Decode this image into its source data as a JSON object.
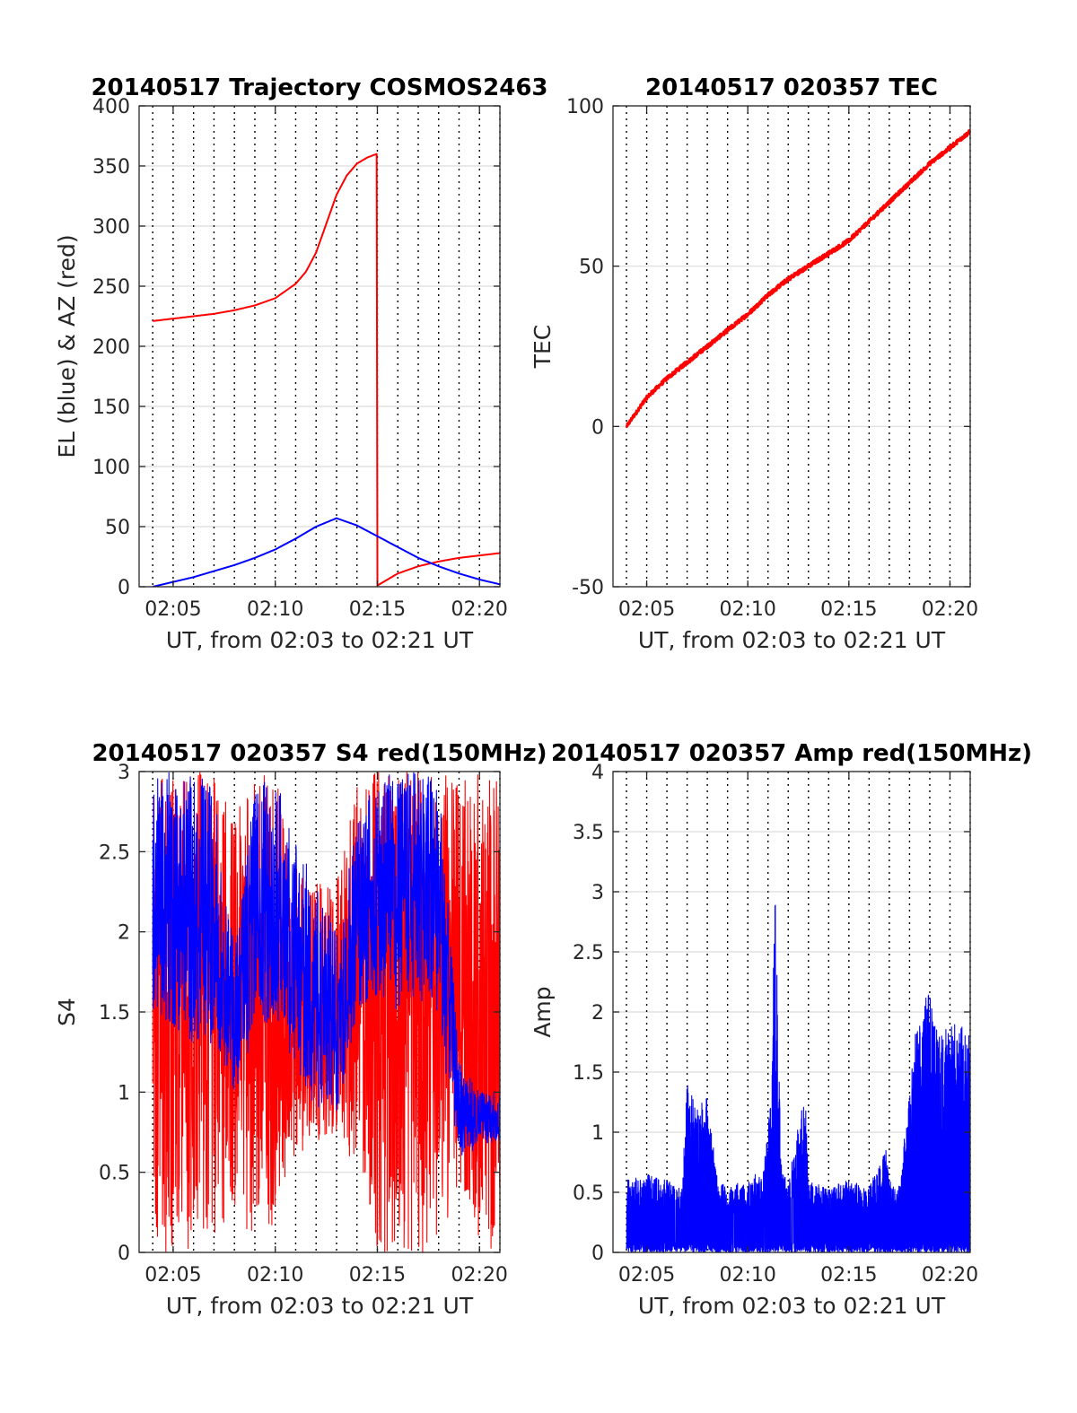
{
  "chart_data": [
    {
      "type": "line",
      "title": "20140517 Trajectory COSMOS2463",
      "xlabel": "UT, from 02:03 to 02:21 UT",
      "ylabel": "EL (blue) & AZ (red)",
      "xlim": [
        "02:03:20",
        "02:21:00"
      ],
      "xticks": [
        "02:05",
        "02:10",
        "02:15",
        "02:20"
      ],
      "ylim": [
        0,
        400
      ],
      "yticks": [
        0,
        50,
        100,
        150,
        200,
        250,
        300,
        350,
        400
      ],
      "grid": "horizontal solid, vertical dotted each minute",
      "series": [
        {
          "name": "AZ",
          "color": "#ff0000",
          "x": [
            "02:04:00",
            "02:05:00",
            "02:06:00",
            "02:07:00",
            "02:08:00",
            "02:09:00",
            "02:10:00",
            "02:11:00",
            "02:11:30",
            "02:12:00",
            "02:12:30",
            "02:13:00",
            "02:13:30",
            "02:14:00",
            "02:14:30",
            "02:14:58",
            "02:15:00",
            "02:16:00",
            "02:17:00",
            "02:18:00",
            "02:19:00",
            "02:20:00",
            "02:21:00"
          ],
          "values": [
            221,
            223,
            225,
            227,
            230,
            234,
            240,
            252,
            262,
            278,
            302,
            326,
            342,
            352,
            357,
            360,
            1,
            11,
            17,
            21,
            24,
            26,
            28
          ]
        },
        {
          "name": "EL",
          "color": "#0000ff",
          "x": [
            "02:04:00",
            "02:05:00",
            "02:06:00",
            "02:07:00",
            "02:08:00",
            "02:09:00",
            "02:10:00",
            "02:11:00",
            "02:12:00",
            "02:13:00",
            "02:14:00",
            "02:15:00",
            "02:16:00",
            "02:17:00",
            "02:18:00",
            "02:19:00",
            "02:20:00",
            "02:21:00"
          ],
          "values": [
            0,
            4,
            8,
            13,
            18,
            24,
            31,
            40,
            50,
            57,
            51,
            42,
            33,
            24,
            17,
            11,
            6,
            2
          ]
        }
      ]
    },
    {
      "type": "line",
      "title": "20140517 020357 TEC",
      "xlabel": "UT, from 02:03 to 02:21 UT",
      "ylabel": "TEC",
      "xlim": [
        "02:03:20",
        "02:21:00"
      ],
      "xticks": [
        "02:05",
        "02:10",
        "02:15",
        "02:20"
      ],
      "ylim": [
        -50,
        100
      ],
      "yticks": [
        -50,
        0,
        50,
        100
      ],
      "grid": "horizontal solid, vertical dotted each minute",
      "series": [
        {
          "name": "TEC",
          "color": "#ff0000",
          "x": [
            "02:04:00",
            "02:05:00",
            "02:06:00",
            "02:07:00",
            "02:08:00",
            "02:09:00",
            "02:10:00",
            "02:11:00",
            "02:12:00",
            "02:13:00",
            "02:14:00",
            "02:15:00",
            "02:16:00",
            "02:17:00",
            "02:18:00",
            "02:19:00",
            "02:20:00",
            "02:21:00"
          ],
          "values": [
            0,
            9,
            15,
            20,
            25,
            30,
            35,
            41,
            46,
            50,
            54,
            58,
            64,
            70,
            76,
            82,
            87,
            92
          ]
        }
      ]
    },
    {
      "type": "line",
      "title": "20140517 020357 S4 red(150MHz)",
      "xlabel": "UT, from 02:03 to 02:21 UT",
      "ylabel": "S4",
      "xlim": [
        "02:03:20",
        "02:21:00"
      ],
      "xticks": [
        "02:05",
        "02:10",
        "02:15",
        "02:20"
      ],
      "ylim": [
        0,
        3
      ],
      "yticks": [
        0,
        0.5,
        1,
        1.5,
        2,
        2.5,
        3
      ],
      "grid": "horizontal solid, vertical dotted each minute",
      "series": [
        {
          "name": "S4 red",
          "color": "#ff0000",
          "x": [
            "02:04:00",
            "02:05:00",
            "02:06:00",
            "02:07:00",
            "02:08:00",
            "02:09:00",
            "02:10:00",
            "02:11:00",
            "02:12:00",
            "02:13:00",
            "02:14:00",
            "02:15:00",
            "02:16:00",
            "02:17:00",
            "02:18:00",
            "02:19:00",
            "02:20:00",
            "02:21:00"
          ],
          "values": [
            2.2,
            1.8,
            1.6,
            1.7,
            1.4,
            1.7,
            1.8,
            1.6,
            1.3,
            1.5,
            1.7,
            2.2,
            1.6,
            2.0,
            1.8,
            1.5,
            1.3,
            1.5
          ],
          "range_low": [
            0,
            0,
            0,
            0,
            0.3,
            0,
            0.2,
            0.6,
            0.7,
            0.7,
            0.5,
            0,
            0,
            0,
            0,
            0.4,
            0,
            0
          ],
          "range_high": [
            3,
            3,
            3,
            3,
            2.7,
            3,
            3,
            2.4,
            2.3,
            2.3,
            3,
            3,
            3,
            3,
            3,
            3,
            3,
            3
          ]
        },
        {
          "name": "S4 blue",
          "color": "#0000ff",
          "x": [
            "02:04:00",
            "02:05:00",
            "02:06:00",
            "02:07:00",
            "02:08:00",
            "02:09:00",
            "02:10:00",
            "02:11:00",
            "02:12:00",
            "02:13:00",
            "02:14:00",
            "02:15:00",
            "02:16:00",
            "02:17:00",
            "02:18:00",
            "02:19:00",
            "02:20:00",
            "02:21:00"
          ],
          "values": [
            2.2,
            2.3,
            2.2,
            2.0,
            1.4,
            2.0,
            2.2,
            1.8,
            1.6,
            1.4,
            2.0,
            2.3,
            2.2,
            2.4,
            2.1,
            0.8,
            0.85,
            0.8
          ],
          "range_low": [
            1.5,
            1.4,
            1.3,
            1.3,
            1.0,
            1.3,
            1.5,
            1.1,
            0.9,
            0.8,
            1.5,
            1.6,
            1.5,
            1.6,
            1.4,
            0.6,
            0.65,
            0.7
          ],
          "range_high": [
            3,
            3,
            3,
            2.9,
            1.9,
            2.9,
            3,
            2.6,
            2.3,
            2.0,
            2.7,
            3,
            3,
            3,
            3,
            1.2,
            1.0,
            1.0
          ]
        }
      ]
    },
    {
      "type": "line",
      "title": "20140517 020357 Amp red(150MHz)",
      "xlabel": "UT, from 02:03 to 02:21 UT",
      "ylabel": "Amp",
      "xlim": [
        "02:03:20",
        "02:21:00"
      ],
      "xticks": [
        "02:05",
        "02:10",
        "02:15",
        "02:20"
      ],
      "ylim": [
        0,
        4
      ],
      "yticks": [
        0,
        0.5,
        1,
        1.5,
        2,
        2.5,
        3,
        3.5,
        4
      ],
      "grid": "horizontal solid, vertical dotted each minute",
      "series": [
        {
          "name": "Amp",
          "color": "#0000ff",
          "x": [
            "02:04:00",
            "02:05:00",
            "02:06:00",
            "02:06:45",
            "02:07:00",
            "02:07:30",
            "02:08:00",
            "02:08:30",
            "02:09:00",
            "02:10:00",
            "02:10:45",
            "02:11:10",
            "02:11:20",
            "02:11:40",
            "02:12:00",
            "02:12:50",
            "02:13:00",
            "02:14:00",
            "02:15:00",
            "02:16:00",
            "02:16:50",
            "02:17:00",
            "02:17:30",
            "02:18:20",
            "02:18:30",
            "02:19:00",
            "02:19:30",
            "02:20:00",
            "02:21:00"
          ],
          "values": [
            0.6,
            0.65,
            0.6,
            0.55,
            1.4,
            1.2,
            1.3,
            0.6,
            0.55,
            0.6,
            0.7,
            1.3,
            3.1,
            0.7,
            0.6,
            1.35,
            0.6,
            0.55,
            0.6,
            0.55,
            0.85,
            0.6,
            0.55,
            1.9,
            2.0,
            2.2,
            1.8,
            1.9,
            1.9
          ]
        }
      ]
    }
  ]
}
